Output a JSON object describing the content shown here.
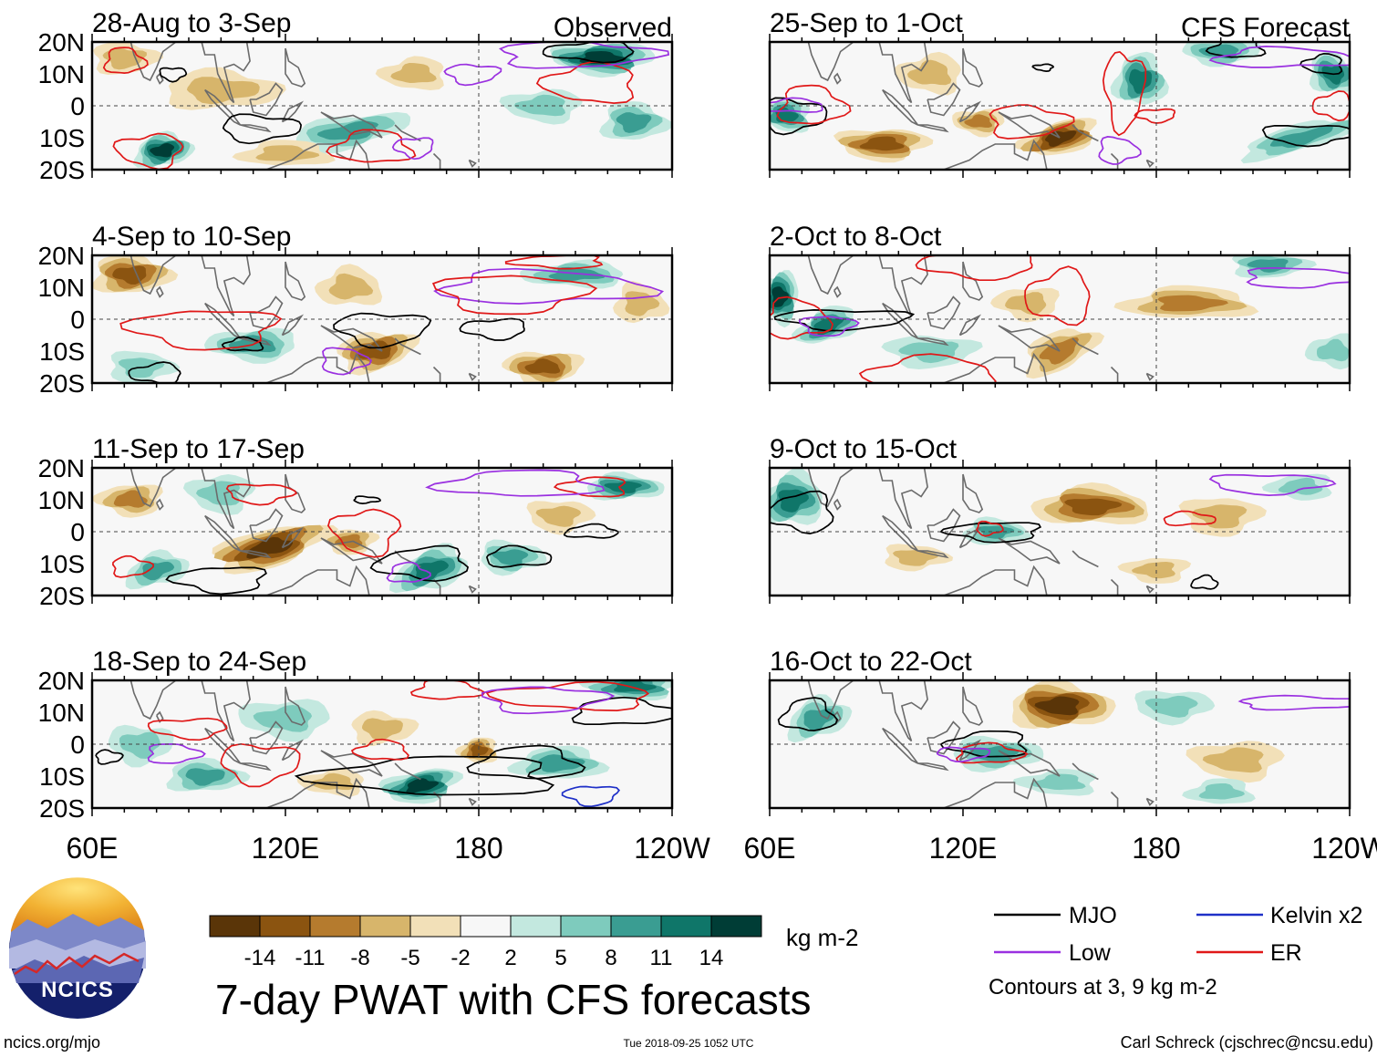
{
  "chart_data": {
    "type": "heatmap",
    "title": "7-day PWAT with CFS forecasts",
    "units": "kg m-2",
    "columns": [
      {
        "header": "Observed",
        "panels": [
          {
            "title": "28-Aug to 3-Sep"
          },
          {
            "title": "4-Sep to 10-Sep"
          },
          {
            "title": "11-Sep to 17-Sep"
          },
          {
            "title": "18-Sep to 24-Sep"
          }
        ]
      },
      {
        "header": "CFS Forecast",
        "panels": [
          {
            "title": "25-Sep to 1-Oct"
          },
          {
            "title": "2-Oct to 8-Oct"
          },
          {
            "title": "9-Oct to 15-Oct"
          },
          {
            "title": "16-Oct to 22-Oct"
          }
        ]
      }
    ],
    "x_axis": {
      "labels": [
        "60E",
        "120E",
        "180",
        "120W"
      ],
      "range_deg": [
        60,
        240
      ],
      "ticks_every_deg": 10,
      "dashed_reference": "180"
    },
    "y_axis": {
      "labels": [
        "20N",
        "10N",
        "0",
        "10S",
        "20S"
      ],
      "range_deg": [
        -20,
        20
      ],
      "dashed_reference": "0"
    },
    "colorbar": {
      "ticks": [
        "-14",
        "-11",
        "-8",
        "-5",
        "-2",
        "2",
        "5",
        "8",
        "11",
        "14"
      ],
      "colors": [
        "#5a3508",
        "#8b5410",
        "#b57b2e",
        "#d7b56b",
        "#f2e0b8",
        "#f7f7f7",
        "#c3e8df",
        "#7ecbbd",
        "#3a9d92",
        "#0f7669",
        "#003d36"
      ]
    },
    "legend": [
      {
        "label": "MJO",
        "color": "#000000"
      },
      {
        "label": "Kelvin x2",
        "color": "#1f30c8"
      },
      {
        "label": "Low",
        "color": "#9a30e0"
      },
      {
        "label": "ER",
        "color": "#e01818"
      }
    ],
    "contour_note": "Contours at 3, 9 kg m-2"
  },
  "footer": {
    "logo_text": "NCICS",
    "website": "ncics.org/mjo",
    "timestamp": "Tue 2018-09-25 1052 UTC",
    "credit": "Carl Schreck (cjschrec@ncsu.edu)"
  }
}
